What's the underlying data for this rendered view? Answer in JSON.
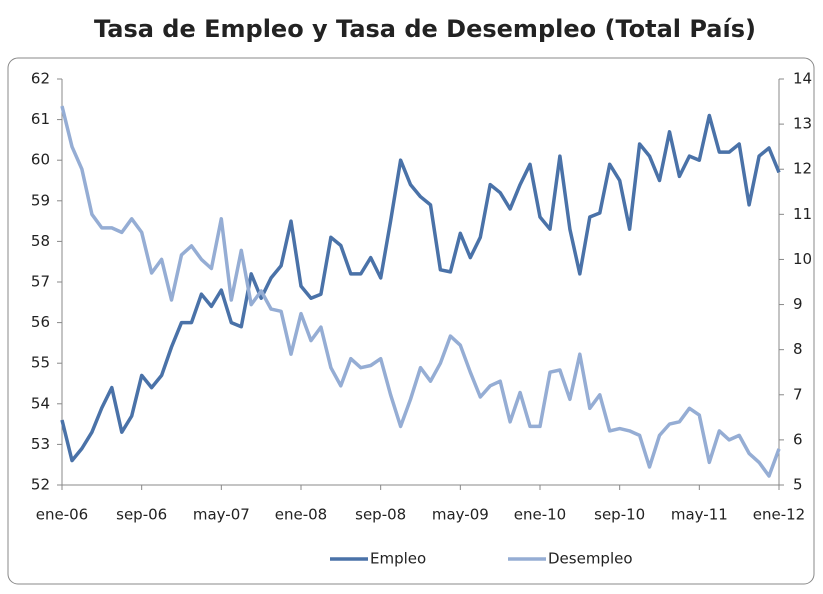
{
  "chart_data": {
    "type": "line",
    "title": "Tasa de Empleo y Tasa de Desempleo  (Total País)",
    "categories": [
      "ene-06",
      null,
      null,
      null,
      null,
      null,
      null,
      null,
      "sep-06",
      null,
      null,
      null,
      null,
      null,
      null,
      null,
      "may-07",
      null,
      null,
      null,
      null,
      null,
      null,
      null,
      "ene-08",
      null,
      null,
      null,
      null,
      null,
      null,
      null,
      "sep-08",
      null,
      null,
      null,
      null,
      null,
      null,
      null,
      "may-09",
      null,
      null,
      null,
      null,
      null,
      null,
      null,
      "ene-10",
      null,
      null,
      null,
      null,
      null,
      null,
      null,
      "sep-10",
      null,
      null,
      null,
      null,
      null,
      null,
      null,
      "may-11",
      null,
      null,
      null,
      null,
      null,
      null,
      null,
      "ene-12"
    ],
    "series": [
      {
        "name": "Empleo",
        "color": "#4a72a8",
        "axis": "y",
        "values": [
          53.6,
          52.6,
          52.9,
          53.3,
          53.9,
          54.4,
          53.3,
          53.7,
          54.7,
          54.4,
          54.7,
          55.4,
          56.0,
          56.0,
          56.7,
          56.4,
          56.8,
          56.0,
          55.9,
          57.2,
          56.6,
          57.1,
          57.4,
          58.5,
          56.9,
          56.6,
          56.7,
          58.1,
          57.9,
          57.2,
          57.2,
          57.6,
          57.1,
          58.5,
          60.0,
          59.4,
          59.1,
          58.9,
          57.3,
          57.25,
          58.2,
          57.6,
          58.1,
          59.4,
          59.2,
          58.8,
          59.4,
          59.9,
          58.6,
          58.3,
          60.1,
          58.3,
          57.2,
          58.6,
          58.7,
          59.9,
          59.5,
          58.3,
          60.4,
          60.1,
          59.5,
          60.7,
          59.6,
          60.1,
          60.0,
          61.1,
          60.2,
          60.2,
          60.4,
          58.9,
          60.1,
          60.3,
          59.7
        ]
      },
      {
        "name": "Desempleo",
        "color": "#95add4",
        "axis": "y2",
        "values": [
          13.4,
          12.5,
          12.0,
          11.0,
          10.7,
          10.7,
          10.6,
          10.9,
          10.6,
          9.7,
          10.0,
          9.1,
          10.1,
          10.3,
          10.0,
          9.8,
          10.9,
          9.1,
          10.2,
          9.0,
          9.3,
          8.9,
          8.85,
          7.9,
          8.8,
          8.2,
          8.5,
          7.6,
          7.2,
          7.8,
          7.6,
          7.65,
          7.8,
          7.0,
          6.3,
          6.9,
          7.6,
          7.3,
          7.7,
          8.3,
          8.1,
          7.5,
          6.95,
          7.2,
          7.3,
          6.4,
          7.05,
          6.3,
          6.3,
          7.5,
          7.55,
          6.9,
          7.9,
          6.7,
          7.0,
          6.2,
          6.25,
          6.2,
          6.1,
          5.4,
          6.1,
          6.35,
          6.4,
          6.7,
          6.55,
          5.5,
          6.2,
          6.0,
          6.1,
          5.7,
          5.5,
          5.2,
          5.8
        ]
      }
    ],
    "ylim": [
      52,
      62
    ],
    "yticks": [
      52,
      53,
      54,
      55,
      56,
      57,
      58,
      59,
      60,
      61,
      62
    ],
    "y2lim": [
      5,
      14
    ],
    "y2ticks": [
      5,
      6,
      7,
      8,
      9,
      10,
      11,
      12,
      13,
      14
    ],
    "legend": "bottom"
  }
}
